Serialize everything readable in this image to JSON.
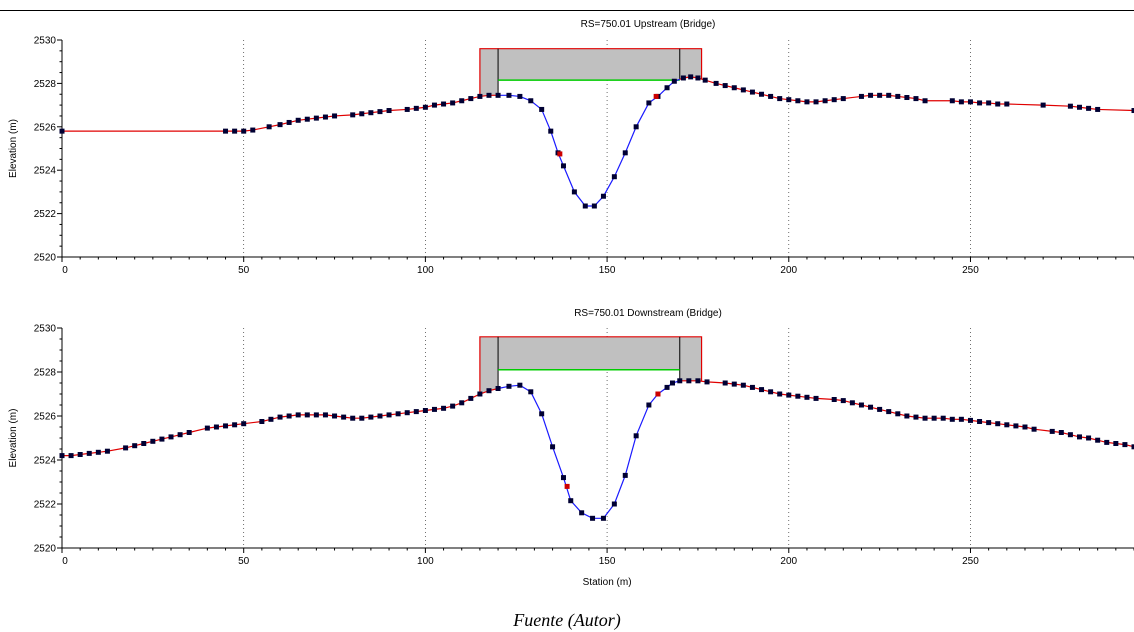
{
  "caption": "Fuente (Autor)",
  "colors": {
    "ground": "#e00000",
    "channel": "#1a1aff",
    "point": "#000033",
    "bank_point": "#cc0000",
    "deck_fill": "#c0c0c0",
    "deck_outline": "#e00000",
    "low_chord": "#00cc00",
    "grid": "#000000"
  },
  "chart_data": [
    {
      "type": "line",
      "title": "RS=750.01  Upstream  (Bridge)",
      "xlabel": "",
      "ylabel": "Elevation (m)",
      "xlim": [
        0,
        295
      ],
      "ylim": [
        2520,
        2530
      ],
      "xticks": [
        "0",
        "50",
        "100",
        "150",
        "200",
        "250"
      ],
      "xtick_values": [
        0,
        50,
        100,
        150,
        200,
        250
      ],
      "yticks": [
        "2520",
        "2522",
        "2524",
        "2526",
        "2528",
        "2530"
      ],
      "ytick_values": [
        2520,
        2522,
        2524,
        2526,
        2528,
        2530
      ],
      "grid": "dotted vertical",
      "ground": {
        "x": [
          0,
          45,
          47.5,
          50,
          52.5,
          57,
          60,
          62.5,
          65,
          67.5,
          70,
          72.5,
          75,
          80,
          82.5,
          85,
          87.5,
          90,
          95,
          97.5,
          100,
          102.5,
          105,
          107.5,
          110,
          112.5,
          115,
          117.5,
          120,
          123,
          126,
          129,
          132,
          134.5,
          136.5,
          138,
          141,
          144,
          146.5,
          149,
          152,
          155,
          158,
          161.5,
          164,
          166.5,
          168.5,
          171,
          173,
          175,
          177,
          180,
          182.5,
          185,
          187.5,
          190,
          192.5,
          195,
          197.5,
          200,
          202.5,
          205,
          207.5,
          210,
          212.5,
          215,
          220,
          222.5,
          225,
          227.5,
          230,
          232.5,
          235,
          237.5,
          245,
          247.5,
          250,
          252.5,
          255,
          257.5,
          260,
          270,
          277.5,
          280,
          282.5,
          285,
          295
        ],
        "y": [
          2525.8,
          2525.8,
          2525.8,
          2525.8,
          2525.85,
          2526.0,
          2526.1,
          2526.2,
          2526.3,
          2526.35,
          2526.4,
          2526.45,
          2526.5,
          2526.55,
          2526.6,
          2526.65,
          2526.7,
          2526.75,
          2526.8,
          2526.85,
          2526.9,
          2527.0,
          2527.05,
          2527.1,
          2527.2,
          2527.3,
          2527.4,
          2527.45,
          2527.45,
          2527.45,
          2527.4,
          2527.2,
          2526.8,
          2525.8,
          2524.8,
          2524.2,
          2523.0,
          2522.35,
          2522.35,
          2522.8,
          2523.7,
          2524.8,
          2526.0,
          2527.1,
          2527.4,
          2527.8,
          2528.1,
          2528.25,
          2528.3,
          2528.25,
          2528.15,
          2528.0,
          2527.9,
          2527.8,
          2527.7,
          2527.6,
          2527.5,
          2527.4,
          2527.3,
          2527.25,
          2527.2,
          2527.15,
          2527.15,
          2527.2,
          2527.25,
          2527.3,
          2527.4,
          2527.45,
          2527.45,
          2527.45,
          2527.4,
          2527.35,
          2527.3,
          2527.2,
          2527.2,
          2527.15,
          2527.15,
          2527.1,
          2527.1,
          2527.05,
          2527.05,
          2527.0,
          2526.95,
          2526.9,
          2526.85,
          2526.8,
          2526.75
        ]
      },
      "bank_stations": [
        [
          137,
          2524.75
        ],
        [
          163.5,
          2527.4
        ]
      ],
      "bridge": {
        "x_left": 115,
        "x_right": 176,
        "x_abut_left": 120,
        "x_abut_right": 170,
        "high_chord": 2529.6,
        "low_chord": 2528.15
      }
    },
    {
      "type": "line",
      "title": "RS=750.01  Downstream  (Bridge)",
      "xlabel": "Station (m)",
      "ylabel": "Elevation (m)",
      "xlim": [
        0,
        295
      ],
      "ylim": [
        2520,
        2530
      ],
      "xticks": [
        "0",
        "50",
        "100",
        "150",
        "200",
        "250"
      ],
      "xtick_values": [
        0,
        50,
        100,
        150,
        200,
        250
      ],
      "yticks": [
        "2520",
        "2522",
        "2524",
        "2526",
        "2528",
        "2530"
      ],
      "ytick_values": [
        2520,
        2522,
        2524,
        2526,
        2528,
        2530
      ],
      "grid": "dotted vertical",
      "ground": {
        "x": [
          0,
          2.5,
          5,
          7.5,
          10,
          12.5,
          17.5,
          20,
          22.5,
          25,
          27.5,
          30,
          32.5,
          35,
          40,
          42.5,
          45,
          47.5,
          50,
          55,
          57.5,
          60,
          62.5,
          65,
          67.5,
          70,
          72.5,
          75,
          77.5,
          80,
          82.5,
          85,
          87.5,
          90,
          92.5,
          95,
          97.5,
          100,
          102.5,
          105,
          107.5,
          110,
          112.5,
          115,
          117.5,
          120,
          123,
          126,
          129,
          132,
          135,
          138,
          140,
          143,
          146,
          149,
          152,
          155,
          158,
          161.5,
          164,
          166.5,
          168,
          170,
          172.5,
          175,
          177.5,
          182.5,
          185,
          187.5,
          190,
          192.5,
          195,
          197.5,
          200,
          202.5,
          205,
          207.5,
          212.5,
          215,
          217.5,
          220,
          222.5,
          225,
          227.5,
          230,
          232.5,
          235,
          237.5,
          240,
          242.5,
          245,
          247.5,
          250,
          252.5,
          255,
          257.5,
          260,
          262.5,
          265,
          267.5,
          272.5,
          275,
          277.5,
          280,
          282.5,
          285,
          287.5,
          290,
          292.5,
          295
        ],
        "y": [
          2524.2,
          2524.2,
          2524.25,
          2524.3,
          2524.35,
          2524.4,
          2524.55,
          2524.65,
          2524.75,
          2524.85,
          2524.95,
          2525.05,
          2525.15,
          2525.25,
          2525.45,
          2525.5,
          2525.55,
          2525.6,
          2525.65,
          2525.75,
          2525.85,
          2525.95,
          2526.0,
          2526.05,
          2526.05,
          2526.05,
          2526.05,
          2526.0,
          2525.95,
          2525.9,
          2525.9,
          2525.95,
          2526.0,
          2526.05,
          2526.1,
          2526.15,
          2526.2,
          2526.25,
          2526.3,
          2526.35,
          2526.45,
          2526.6,
          2526.8,
          2527.0,
          2527.15,
          2527.25,
          2527.35,
          2527.4,
          2527.1,
          2526.1,
          2524.6,
          2523.2,
          2522.15,
          2521.6,
          2521.35,
          2521.35,
          2522.0,
          2523.3,
          2525.1,
          2526.5,
          2527.0,
          2527.3,
          2527.5,
          2527.6,
          2527.6,
          2527.6,
          2527.55,
          2527.5,
          2527.45,
          2527.4,
          2527.3,
          2527.2,
          2527.1,
          2527.0,
          2526.95,
          2526.9,
          2526.85,
          2526.8,
          2526.75,
          2526.7,
          2526.6,
          2526.5,
          2526.4,
          2526.3,
          2526.2,
          2526.1,
          2526.0,
          2525.95,
          2525.9,
          2525.9,
          2525.9,
          2525.85,
          2525.85,
          2525.8,
          2525.75,
          2525.7,
          2525.65,
          2525.6,
          2525.55,
          2525.5,
          2525.4,
          2525.3,
          2525.25,
          2525.15,
          2525.05,
          2525.0,
          2524.9,
          2524.8,
          2524.75,
          2524.7,
          2524.6
        ]
      },
      "bank_stations": [
        [
          139,
          2522.8
        ],
        [
          164,
          2527.0
        ]
      ],
      "bridge": {
        "x_left": 115,
        "x_right": 176,
        "x_abut_left": 120,
        "x_abut_right": 170,
        "high_chord": 2529.6,
        "low_chord": 2528.1
      }
    }
  ]
}
